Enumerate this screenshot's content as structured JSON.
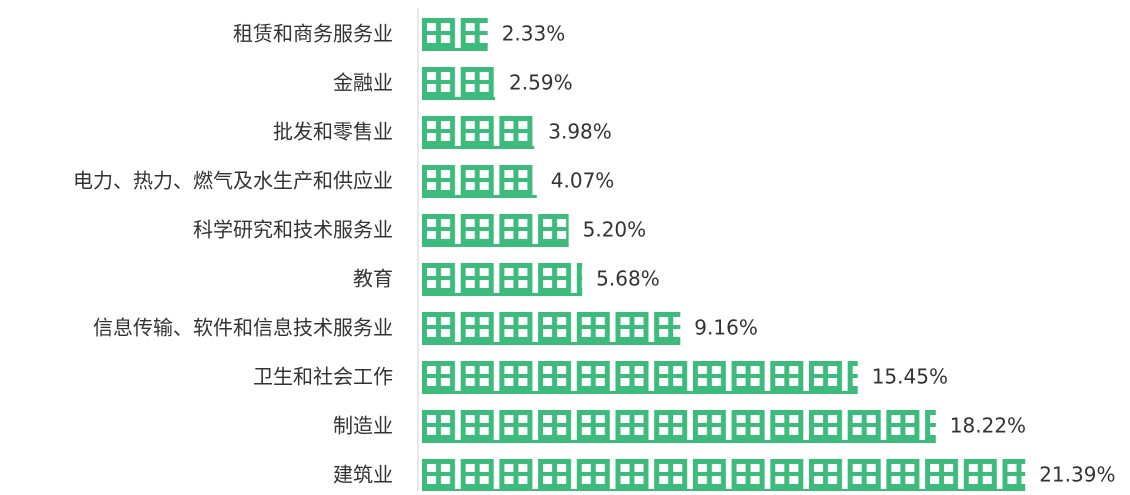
{
  "chart_data": {
    "type": "pictograph",
    "categories": [
      "租赁和商务服务业",
      "金融业",
      "批发和零售业",
      "电力、热力、燃气及水生产和供应业",
      "科学研究和技术服务业",
      "教育",
      "信息传输、软件和信息技术服务业",
      "卫生和社会工作",
      "制造业",
      "建筑业"
    ],
    "values": [
      2.33,
      2.59,
      3.98,
      4.07,
      5.2,
      5.68,
      9.16,
      15.45,
      18.22,
      21.39
    ],
    "value_labels": [
      "2.33%",
      "2.59%",
      "3.98%",
      "4.07%",
      "5.20%",
      "5.68%",
      "9.16%",
      "15.45%",
      "18.22%",
      "21.39%"
    ],
    "color": "#3dbb7c"
  }
}
